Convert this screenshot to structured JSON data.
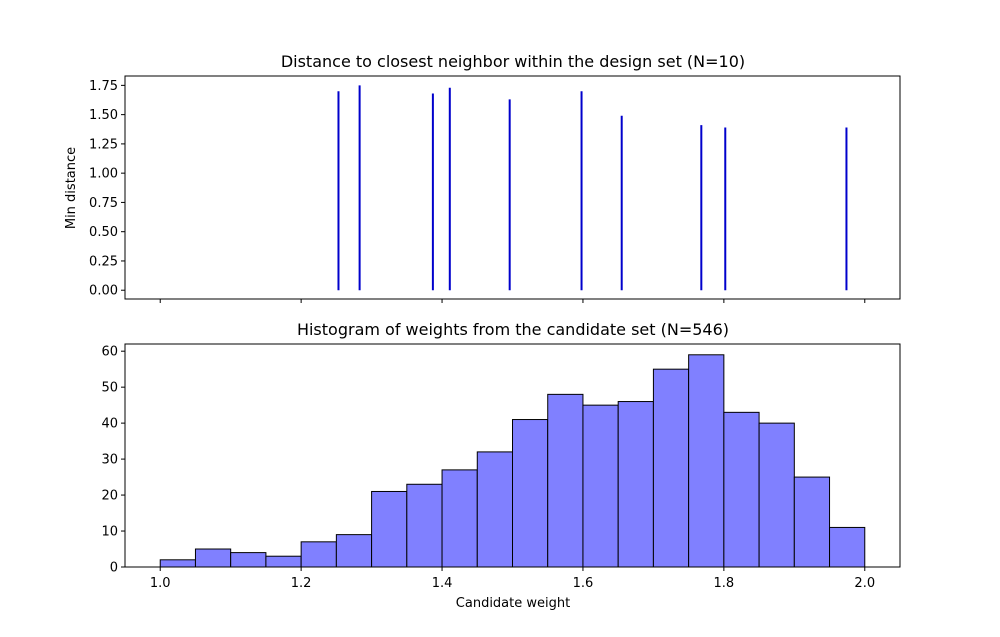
{
  "chart_data": [
    {
      "type": "stem",
      "title": "Distance to closest neighbor within the design set (N=10)",
      "ylabel": "Min distance",
      "xlabel": "",
      "xlim": [
        0.95,
        2.05
      ],
      "ylim": [
        -0.075,
        1.83
      ],
      "yticks": [
        0.0,
        0.25,
        0.5,
        0.75,
        1.0,
        1.25,
        1.5,
        1.75
      ],
      "ytick_labels": [
        "0.00",
        "0.25",
        "0.50",
        "0.75",
        "1.00",
        "1.25",
        "1.50",
        "1.75"
      ],
      "xticks": [
        1.0,
        1.2,
        1.4,
        1.6,
        1.8,
        2.0
      ],
      "show_xtick_labels": false,
      "color": "#0000cc",
      "points": [
        {
          "x": 1.253,
          "y": 1.7
        },
        {
          "x": 1.283,
          "y": 1.75
        },
        {
          "x": 1.387,
          "y": 1.68
        },
        {
          "x": 1.411,
          "y": 1.73
        },
        {
          "x": 1.496,
          "y": 1.63
        },
        {
          "x": 1.598,
          "y": 1.7
        },
        {
          "x": 1.655,
          "y": 1.49
        },
        {
          "x": 1.768,
          "y": 1.41
        },
        {
          "x": 1.802,
          "y": 1.39
        },
        {
          "x": 1.974,
          "y": 1.39
        }
      ]
    },
    {
      "type": "histogram",
      "title": "Histogram of weights from the candidate set (N=546)",
      "xlabel": "Candidate weight",
      "ylabel": "",
      "xlim": [
        0.95,
        2.05
      ],
      "ylim": [
        0,
        62
      ],
      "xticks": [
        1.0,
        1.2,
        1.4,
        1.6,
        1.8,
        2.0
      ],
      "xtick_labels": [
        "1.0",
        "1.2",
        "1.4",
        "1.6",
        "1.8",
        "2.0"
      ],
      "yticks": [
        0,
        10,
        20,
        30,
        40,
        50,
        60
      ],
      "ytick_labels": [
        "0",
        "10",
        "20",
        "30",
        "40",
        "50",
        "60"
      ],
      "bin_edges": [
        1.0,
        1.05,
        1.1,
        1.15,
        1.2,
        1.25,
        1.3,
        1.35,
        1.4,
        1.45,
        1.5,
        1.55,
        1.6,
        1.65,
        1.7,
        1.75,
        1.8,
        1.85,
        1.9,
        1.95,
        2.0
      ],
      "counts": [
        2,
        5,
        4,
        3,
        7,
        9,
        21,
        23,
        27,
        32,
        41,
        48,
        45,
        46,
        55,
        59,
        43,
        40,
        25,
        11
      ],
      "bar_color": "#8080ff",
      "edge_color": "#000000"
    }
  ]
}
